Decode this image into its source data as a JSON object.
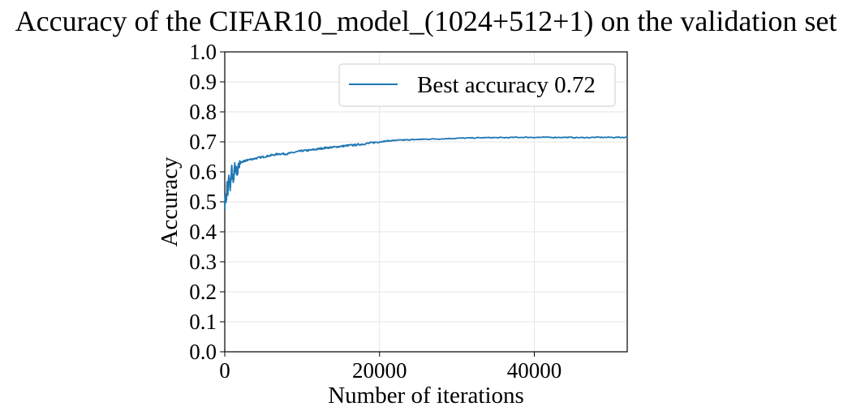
{
  "chart_data": {
    "type": "line",
    "title": "Accuracy of the CIFAR10_model_(1024+512+1) on the validation set",
    "xlabel": "Number of iterations",
    "ylabel": "Accuracy",
    "xlim": [
      0,
      52000
    ],
    "ylim": [
      0.0,
      1.0
    ],
    "xticks": [
      0,
      20000,
      40000
    ],
    "xtick_labels": [
      "0",
      "20000",
      "40000"
    ],
    "yticks": [
      0.0,
      0.1,
      0.2,
      0.3,
      0.4,
      0.5,
      0.6,
      0.7,
      0.8,
      0.9,
      1.0
    ],
    "ytick_labels": [
      "0.0",
      "0.1",
      "0.2",
      "0.3",
      "0.4",
      "0.5",
      "0.6",
      "0.7",
      "0.8",
      "0.9",
      "1.0"
    ],
    "grid": true,
    "legend": {
      "placement": "upper-right",
      "entries": [
        "Best accuracy 0.72"
      ]
    },
    "line_color": "#1f77b4",
    "series": [
      {
        "name": "Best accuracy 0.72",
        "x": [
          0,
          100,
          200,
          300,
          400,
          500,
          700,
          900,
          1100,
          1300,
          1600,
          2000,
          2500,
          3000,
          4000,
          5000,
          6000,
          7000,
          8000,
          9000,
          10000,
          11000,
          12000,
          13000,
          14000,
          15000,
          16000,
          17000,
          18000,
          19000,
          20000,
          21000,
          22000,
          23000,
          24000,
          25000,
          26000,
          28000,
          30000,
          32000,
          34000,
          36000,
          38000,
          40000,
          42000,
          44000,
          46000,
          48000,
          50000,
          52000
        ],
        "y": [
          0.49,
          0.52,
          0.5,
          0.56,
          0.53,
          0.58,
          0.55,
          0.61,
          0.57,
          0.62,
          0.6,
          0.63,
          0.635,
          0.64,
          0.645,
          0.65,
          0.655,
          0.66,
          0.66,
          0.665,
          0.67,
          0.672,
          0.676,
          0.68,
          0.682,
          0.685,
          0.688,
          0.69,
          0.693,
          0.697,
          0.7,
          0.703,
          0.705,
          0.706,
          0.707,
          0.708,
          0.709,
          0.71,
          0.712,
          0.713,
          0.714,
          0.714,
          0.715,
          0.715,
          0.715,
          0.715,
          0.714,
          0.715,
          0.715,
          0.715
        ]
      }
    ]
  }
}
